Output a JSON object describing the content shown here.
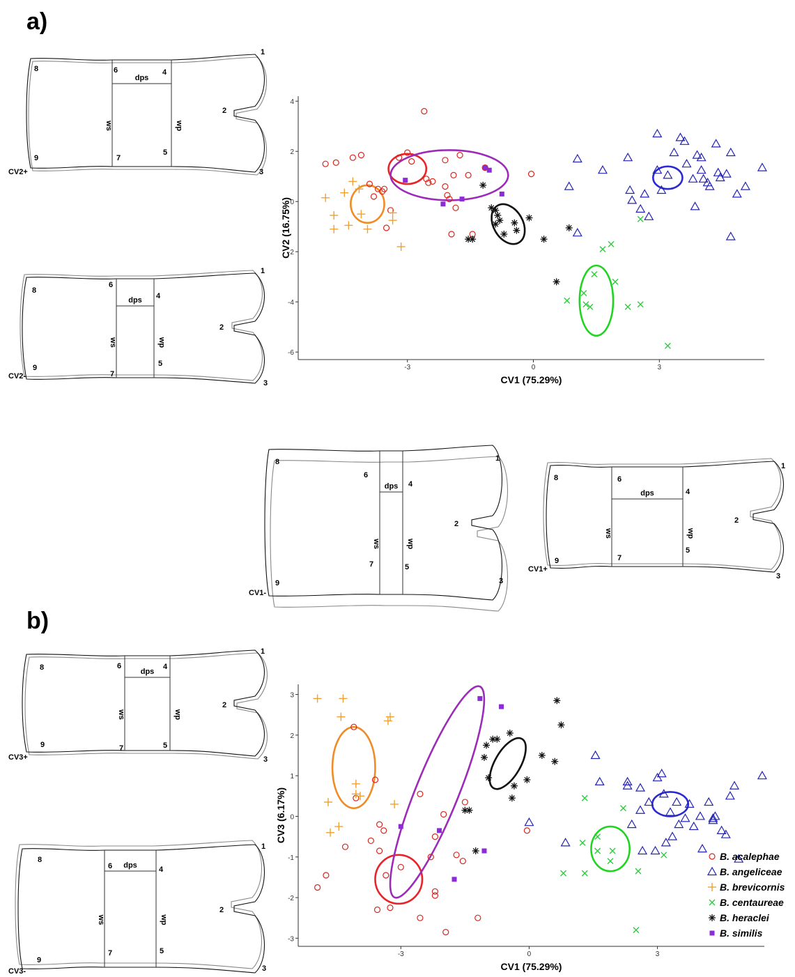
{
  "panel_labels": [
    "a)",
    "b)"
  ],
  "colors": {
    "B. acalephae": "#d7261e",
    "B. angeliceae": "#2323b4",
    "B. brevicornis": "#f0a030",
    "B. centaureae": "#2ecc40",
    "B. heraclei": "#111111",
    "B. similis": "#8e2bd8"
  },
  "ellipse_colors": {
    "B. acalephae": "#e8242a",
    "B. angeliceae": "#2a2ad0",
    "B. brevicornis": "#f08c28",
    "B. centaureae": "#22d422",
    "B. heraclei": "#111111",
    "B. similis": "#9b2bb8"
  },
  "wing_labels": {
    "landmarks": [
      "1",
      "2",
      "3",
      "4",
      "5",
      "6",
      "7",
      "8",
      "9"
    ],
    "measures": [
      "dps",
      "ws",
      "wp"
    ],
    "shapes": [
      "CV2+",
      "CV2-",
      "CV1-",
      "CV1+",
      "CV3+",
      "CV3-"
    ]
  },
  "legend": [
    {
      "name": "B. acalephae",
      "marker": "circle"
    },
    {
      "name": "B. angeliceae",
      "marker": "triangle"
    },
    {
      "name": "B. brevicornis",
      "marker": "plus"
    },
    {
      "name": "B. centaureae",
      "marker": "cross"
    },
    {
      "name": "B. heraclei",
      "marker": "asterisk"
    },
    {
      "name": "B. similis",
      "marker": "square"
    }
  ],
  "chart_data": [
    {
      "type": "scatter",
      "xlabel": "CV1 (75.29%)",
      "ylabel": "CV2 (16.75%)",
      "xlim": [
        -5.6,
        5.5
      ],
      "ylim": [
        -6.3,
        4.2
      ],
      "xticks": [
        -3,
        0,
        3
      ],
      "yticks": [
        -6,
        -4,
        -2,
        0,
        2,
        4
      ],
      "grid": false,
      "series": [
        {
          "name": "B. acalephae",
          "points": [
            [
              -4.95,
              1.5
            ],
            [
              -4.7,
              1.55
            ],
            [
              -4.3,
              1.75
            ],
            [
              -4.1,
              1.85
            ],
            [
              -3.9,
              0.7
            ],
            [
              -3.8,
              0.2
            ],
            [
              -3.7,
              0.5
            ],
            [
              -3.6,
              0.4
            ],
            [
              -3.55,
              0.5
            ],
            [
              -3.4,
              -0.35
            ],
            [
              -3.5,
              -1.05
            ],
            [
              -3.2,
              1.75
            ],
            [
              -3.0,
              1.95
            ],
            [
              -2.9,
              1.6
            ],
            [
              -2.6,
              3.6
            ],
            [
              -2.55,
              0.9
            ],
            [
              -2.5,
              0.75
            ],
            [
              -2.4,
              0.8
            ],
            [
              -2.1,
              0.6
            ],
            [
              -2.05,
              0.25
            ],
            [
              -2.0,
              0.1
            ],
            [
              -1.85,
              -0.25
            ],
            [
              -2.1,
              1.65
            ],
            [
              -1.75,
              1.85
            ],
            [
              -1.9,
              1.05
            ],
            [
              -1.55,
              1.05
            ],
            [
              -1.95,
              -1.3
            ],
            [
              -1.45,
              -1.3
            ],
            [
              -1.15,
              1.35
            ],
            [
              -0.05,
              1.1
            ]
          ]
        },
        {
          "name": "B. angeliceae",
          "points": [
            [
              1.05,
              -1.25
            ],
            [
              0.85,
              0.6
            ],
            [
              1.05,
              1.7
            ],
            [
              1.65,
              1.25
            ],
            [
              2.25,
              1.75
            ],
            [
              2.3,
              0.45
            ],
            [
              2.35,
              0.05
            ],
            [
              2.55,
              -0.3
            ],
            [
              2.65,
              0.3
            ],
            [
              2.75,
              -0.6
            ],
            [
              2.95,
              2.7
            ],
            [
              2.95,
              1.25
            ],
            [
              3.05,
              0.45
            ],
            [
              3.2,
              1.05
            ],
            [
              3.35,
              1.95
            ],
            [
              3.5,
              2.55
            ],
            [
              3.6,
              2.4
            ],
            [
              3.65,
              1.5
            ],
            [
              3.8,
              0.9
            ],
            [
              3.85,
              -0.2
            ],
            [
              3.9,
              1.85
            ],
            [
              4.0,
              1.75
            ],
            [
              4.0,
              1.25
            ],
            [
              4.05,
              0.9
            ],
            [
              4.15,
              0.75
            ],
            [
              4.2,
              0.6
            ],
            [
              4.35,
              2.3
            ],
            [
              4.4,
              1.15
            ],
            [
              4.45,
              0.95
            ],
            [
              4.6,
              1.1
            ],
            [
              4.7,
              1.95
            ],
            [
              4.85,
              0.3
            ],
            [
              5.05,
              0.6
            ],
            [
              4.7,
              -1.4
            ],
            [
              5.45,
              1.35
            ]
          ]
        },
        {
          "name": "B. brevicornis",
          "points": [
            [
              -4.95,
              0.15
            ],
            [
              -4.75,
              -0.55
            ],
            [
              -4.75,
              -1.1
            ],
            [
              -4.5,
              0.35
            ],
            [
              -4.4,
              -0.95
            ],
            [
              -4.3,
              0.8
            ],
            [
              -4.15,
              0.5
            ],
            [
              -4.1,
              -0.5
            ],
            [
              -3.95,
              -1.1
            ],
            [
              -3.35,
              -0.45
            ],
            [
              -3.35,
              -0.75
            ],
            [
              -3.15,
              -1.8
            ]
          ]
        },
        {
          "name": "B. centaureae",
          "points": [
            [
              0.8,
              -3.95
            ],
            [
              1.2,
              -3.65
            ],
            [
              1.25,
              -4.1
            ],
            [
              1.35,
              -4.2
            ],
            [
              1.45,
              -2.9
            ],
            [
              1.65,
              -1.9
            ],
            [
              1.85,
              -1.7
            ],
            [
              1.95,
              -3.2
            ],
            [
              2.25,
              -4.2
            ],
            [
              2.55,
              -4.1
            ],
            [
              2.55,
              -0.7
            ],
            [
              3.2,
              -5.75
            ]
          ]
        },
        {
          "name": "B. heraclei",
          "points": [
            [
              -1.55,
              -1.5
            ],
            [
              -1.45,
              -1.5
            ],
            [
              -1.2,
              0.65
            ],
            [
              -1.0,
              -0.25
            ],
            [
              -0.9,
              -0.35
            ],
            [
              -0.85,
              -0.55
            ],
            [
              -0.8,
              -0.75
            ],
            [
              -0.9,
              -0.9
            ],
            [
              -0.7,
              -1.3
            ],
            [
              -0.45,
              -0.85
            ],
            [
              -0.4,
              -1.15
            ],
            [
              -0.1,
              -0.65
            ],
            [
              0.25,
              -1.5
            ],
            [
              0.55,
              -3.2
            ],
            [
              0.85,
              -1.05
            ]
          ]
        },
        {
          "name": "B. similis",
          "points": [
            [
              -3.05,
              0.85
            ],
            [
              -2.15,
              -0.1
            ],
            [
              -1.7,
              0.1
            ],
            [
              -1.15,
              1.35
            ],
            [
              -1.05,
              1.25
            ],
            [
              -0.75,
              0.3
            ]
          ]
        }
      ],
      "ellipses": [
        {
          "name": "B. acalephae",
          "cx": -3.0,
          "cy": 1.3,
          "rx": 0.45,
          "ry": 0.6,
          "angle": 0
        },
        {
          "name": "B. angeliceae",
          "cx": 3.2,
          "cy": 0.95,
          "rx": 0.35,
          "ry": 0.45,
          "angle": 0
        },
        {
          "name": "B. brevicornis",
          "cx": -3.95,
          "cy": -0.1,
          "rx": 0.4,
          "ry": 0.75,
          "angle": 0
        },
        {
          "name": "B. centaureae",
          "cx": 1.5,
          "cy": -3.95,
          "rx": 0.4,
          "ry": 1.4,
          "angle": 0
        },
        {
          "name": "B. heraclei",
          "cx": -0.6,
          "cy": -0.9,
          "rx": 0.35,
          "ry": 0.85,
          "angle": -30
        },
        {
          "name": "B. similis",
          "cx": -2.0,
          "cy": 1.05,
          "rx": 1.4,
          "ry": 1.0,
          "angle": 0
        }
      ]
    },
    {
      "type": "scatter",
      "xlabel": "CV1 (75.29%)",
      "ylabel": "CV3 (6.17%)",
      "xlim": [
        -5.4,
        5.5
      ],
      "ylim": [
        -3.2,
        3.25
      ],
      "xticks": [
        -3,
        0,
        3
      ],
      "yticks": [
        -3,
        -2,
        -1,
        0,
        1,
        2,
        3
      ],
      "grid": false,
      "series": [
        {
          "name": "B. acalephae",
          "points": [
            [
              -4.95,
              -1.75
            ],
            [
              -4.75,
              -1.45
            ],
            [
              -4.3,
              -0.75
            ],
            [
              -4.1,
              2.2
            ],
            [
              -4.05,
              0.45
            ],
            [
              -3.7,
              -0.6
            ],
            [
              -3.6,
              0.9
            ],
            [
              -3.5,
              -0.2
            ],
            [
              -3.5,
              -0.85
            ],
            [
              -3.55,
              -2.3
            ],
            [
              -3.4,
              -0.35
            ],
            [
              -3.35,
              -1.45
            ],
            [
              -3.25,
              -2.25
            ],
            [
              -3.0,
              -1.25
            ],
            [
              -2.55,
              0.55
            ],
            [
              -2.55,
              -2.5
            ],
            [
              -2.3,
              -1.0
            ],
            [
              -2.2,
              -1.85
            ],
            [
              -2.2,
              -1.95
            ],
            [
              -2.0,
              0.05
            ],
            [
              -2.2,
              -0.5
            ],
            [
              -1.95,
              -2.85
            ],
            [
              -1.7,
              -0.95
            ],
            [
              -1.55,
              -1.1
            ],
            [
              -1.5,
              0.35
            ],
            [
              -1.2,
              -2.5
            ],
            [
              -0.05,
              -0.35
            ]
          ]
        },
        {
          "name": "B. angeliceae",
          "points": [
            [
              0.0,
              -0.15
            ],
            [
              0.85,
              -0.65
            ],
            [
              1.55,
              1.5
            ],
            [
              1.65,
              0.85
            ],
            [
              2.3,
              0.85
            ],
            [
              2.3,
              0.75
            ],
            [
              2.4,
              -0.2
            ],
            [
              2.6,
              0.7
            ],
            [
              2.6,
              0.15
            ],
            [
              2.65,
              -0.85
            ],
            [
              2.8,
              0.35
            ],
            [
              2.95,
              -0.85
            ],
            [
              3.0,
              0.95
            ],
            [
              3.1,
              1.05
            ],
            [
              3.15,
              0.55
            ],
            [
              3.2,
              -0.65
            ],
            [
              3.3,
              0.1
            ],
            [
              3.35,
              -0.5
            ],
            [
              3.45,
              0.35
            ],
            [
              3.5,
              -0.2
            ],
            [
              3.65,
              -0.05
            ],
            [
              3.75,
              0.3
            ],
            [
              3.85,
              -0.25
            ],
            [
              4.0,
              0.0
            ],
            [
              4.05,
              -0.8
            ],
            [
              4.2,
              0.35
            ],
            [
              4.3,
              -0.05
            ],
            [
              4.3,
              -0.1
            ],
            [
              4.35,
              0.0
            ],
            [
              4.5,
              -0.35
            ],
            [
              4.6,
              -0.45
            ],
            [
              4.7,
              0.5
            ],
            [
              4.8,
              0.75
            ],
            [
              4.9,
              -1.05
            ],
            [
              5.45,
              1.0
            ]
          ]
        },
        {
          "name": "B. brevicornis",
          "points": [
            [
              -4.95,
              2.9
            ],
            [
              -4.7,
              0.35
            ],
            [
              -4.65,
              -0.4
            ],
            [
              -4.45,
              -0.25
            ],
            [
              -4.4,
              2.45
            ],
            [
              -4.35,
              2.9
            ],
            [
              -4.05,
              0.8
            ],
            [
              -4.05,
              0.55
            ],
            [
              -3.95,
              0.5
            ],
            [
              -3.25,
              2.45
            ],
            [
              -3.3,
              2.35
            ],
            [
              -3.15,
              0.3
            ]
          ]
        },
        {
          "name": "B. centaureae",
          "points": [
            [
              0.8,
              -1.4
            ],
            [
              1.3,
              -1.4
            ],
            [
              1.25,
              -0.65
            ],
            [
              1.3,
              0.45
            ],
            [
              1.6,
              -0.5
            ],
            [
              1.6,
              -0.85
            ],
            [
              1.9,
              -1.1
            ],
            [
              1.95,
              -0.85
            ],
            [
              2.2,
              0.2
            ],
            [
              2.55,
              -1.35
            ],
            [
              2.5,
              -2.8
            ],
            [
              3.15,
              -0.95
            ]
          ]
        },
        {
          "name": "B. heraclei",
          "points": [
            [
              -1.5,
              0.15
            ],
            [
              -1.4,
              0.15
            ],
            [
              -1.25,
              -0.85
            ],
            [
              -1.05,
              1.45
            ],
            [
              -1.0,
              1.75
            ],
            [
              -0.95,
              0.95
            ],
            [
              -0.85,
              1.9
            ],
            [
              -0.75,
              1.9
            ],
            [
              -0.45,
              2.05
            ],
            [
              -0.4,
              0.45
            ],
            [
              -0.35,
              0.75
            ],
            [
              -0.05,
              0.9
            ],
            [
              0.3,
              1.5
            ],
            [
              0.6,
              1.35
            ],
            [
              0.75,
              2.25
            ],
            [
              0.65,
              2.85
            ]
          ]
        },
        {
          "name": "B. similis",
          "points": [
            [
              -3.0,
              -0.25
            ],
            [
              -2.1,
              -0.35
            ],
            [
              -1.75,
              -1.55
            ],
            [
              -1.05,
              -0.85
            ],
            [
              -1.15,
              2.9
            ],
            [
              -0.65,
              2.7
            ]
          ]
        }
      ],
      "ellipses": [
        {
          "name": "B. acalephae",
          "cx": -3.05,
          "cy": -1.55,
          "rx": 0.55,
          "ry": 0.6,
          "angle": 0
        },
        {
          "name": "B. angeliceae",
          "cx": 3.3,
          "cy": 0.3,
          "rx": 0.42,
          "ry": 0.3,
          "angle": 0
        },
        {
          "name": "B. brevicornis",
          "cx": -4.1,
          "cy": 1.2,
          "rx": 0.5,
          "ry": 1.0,
          "angle": 0
        },
        {
          "name": "B. centaureae",
          "cx": 1.9,
          "cy": -0.8,
          "rx": 0.45,
          "ry": 0.55,
          "angle": 0
        },
        {
          "name": "B. heraclei",
          "cx": -0.5,
          "cy": 1.3,
          "rx": 0.3,
          "ry": 0.7,
          "angle": 30
        },
        {
          "name": "B. similis",
          "cx": -2.15,
          "cy": 0.6,
          "rx": 0.5,
          "ry": 2.8,
          "angle": 22
        }
      ]
    }
  ]
}
